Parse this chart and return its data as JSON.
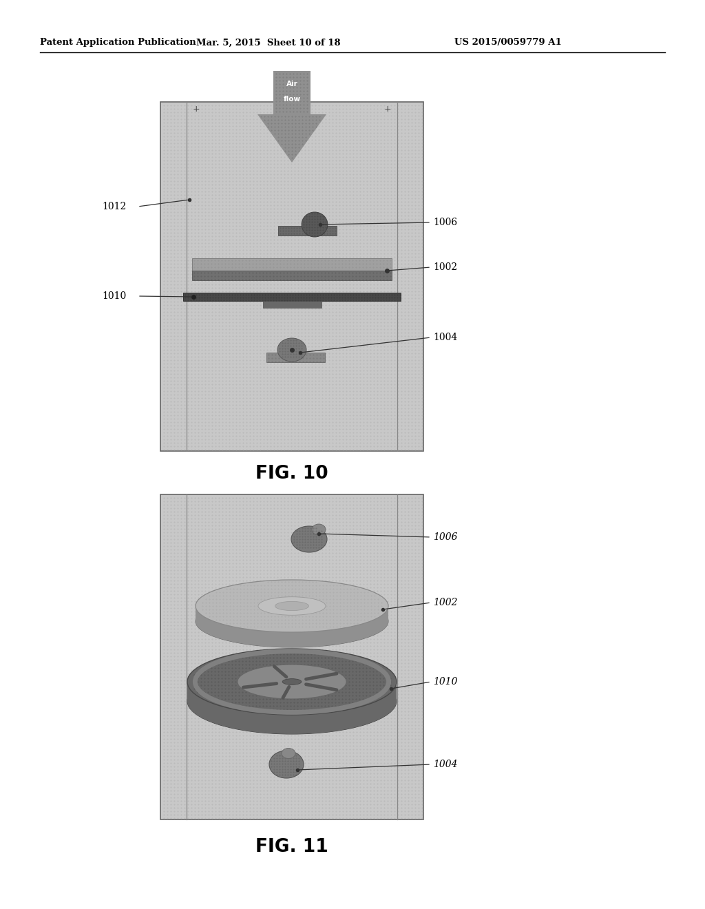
{
  "header_left": "Patent Application Publication",
  "header_mid": "Mar. 5, 2015  Sheet 10 of 18",
  "header_right": "US 2015/0059779 A1",
  "fig10_label": "FIG. 10",
  "fig11_label": "FIG. 11",
  "bg_color": "#ffffff",
  "stipple_bg": "#c0c0c0",
  "stipple_dot": "#a0a0a0",
  "box_edge": "#777777",
  "col_line": "#999999"
}
